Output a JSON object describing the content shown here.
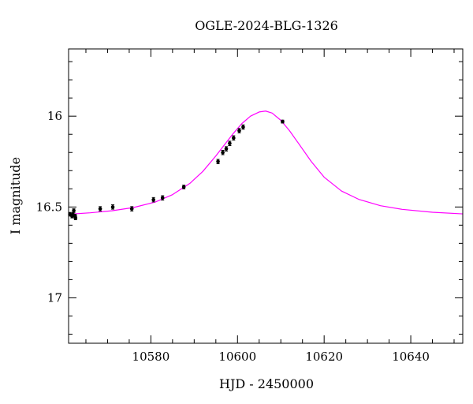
{
  "chart_data": {
    "type": "scatter",
    "title": "OGLE-2024-BLG-1326",
    "xlabel": "HJD - 2450000",
    "ylabel": "I magnitude",
    "xlim": [
      10561,
      10652
    ],
    "ylim": [
      17.25,
      15.63
    ],
    "y_inverted": true,
    "x_ticks": [
      10580,
      10600,
      10620,
      10640
    ],
    "x_tick_labels": [
      "10580",
      "10600",
      "10620",
      "10640"
    ],
    "x_minor_step": 5,
    "y_ticks": [
      16,
      16.5,
      17
    ],
    "y_tick_labels": [
      "16",
      "16.5",
      "17"
    ],
    "y_minor_step": 0.1,
    "grid": false,
    "series": [
      {
        "kind": "points",
        "color": "#000000",
        "x": [
          10561.3,
          10561.8,
          10562.0,
          10562.2,
          10562.5,
          10562.6,
          10568.3,
          10571.2,
          10575.6,
          10580.6,
          10582.7,
          10587.6,
          10595.5,
          10596.6,
          10597.4,
          10598.2,
          10599.1,
          10600.4,
          10601.3,
          10610.4
        ],
        "y": [
          16.54,
          16.55,
          16.54,
          16.52,
          16.55,
          16.56,
          16.51,
          16.5,
          16.51,
          16.46,
          16.45,
          16.39,
          16.25,
          16.2,
          16.18,
          16.15,
          16.12,
          16.08,
          16.06,
          16.03
        ],
        "err": [
          0.01,
          0.01,
          0.01,
          0.01,
          0.01,
          0.01,
          0.012,
          0.012,
          0.012,
          0.012,
          0.012,
          0.01,
          0.012,
          0.012,
          0.012,
          0.012,
          0.012,
          0.012,
          0.012,
          0.008
        ]
      },
      {
        "kind": "model",
        "color": "#ff00ff",
        "x": [
          10561,
          10566,
          10571,
          10576,
          10581,
          10585,
          10589,
          10592,
          10595,
          10597,
          10599,
          10601,
          10603,
          10605,
          10606.5,
          10608,
          10610,
          10612,
          10614,
          10617,
          10620,
          10624,
          10628,
          10633,
          10638,
          10645,
          10652
        ],
        "y": [
          16.54,
          16.532,
          16.521,
          16.503,
          16.473,
          16.432,
          16.37,
          16.304,
          16.219,
          16.157,
          16.096,
          16.041,
          16.0,
          15.977,
          15.972,
          15.983,
          16.023,
          16.08,
          16.147,
          16.249,
          16.336,
          16.412,
          16.458,
          16.493,
          16.513,
          16.529,
          16.538
        ]
      }
    ]
  }
}
